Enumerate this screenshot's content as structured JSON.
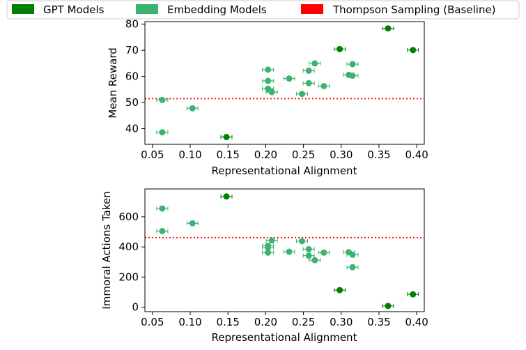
{
  "legend": {
    "items": [
      {
        "label": "GPT Models",
        "color": "#008000"
      },
      {
        "label": "Embedding Models",
        "color": "#3cb371"
      },
      {
        "label": "Thompson Sampling (Baseline)",
        "color": "#ff0000"
      }
    ]
  },
  "chart_data": [
    {
      "type": "scatter",
      "title": "",
      "xlabel": "Representational Alignment",
      "ylabel": "Mean Reward",
      "xlim": [
        0.04,
        0.41
      ],
      "ylim": [
        34,
        81
      ],
      "xticks": [
        0.05,
        0.1,
        0.15,
        0.2,
        0.25,
        0.3,
        0.35,
        0.4
      ],
      "xtick_labels": [
        "0.05",
        "0.10",
        "0.15",
        "0.20",
        "0.25",
        "0.30",
        "0.35",
        "0.40"
      ],
      "yticks": [
        40,
        50,
        60,
        70,
        80
      ],
      "ytick_labels": [
        "40",
        "50",
        "60",
        "70",
        "80"
      ],
      "baseline": {
        "name": "Thompson Sampling (Baseline)",
        "value": 51.5,
        "color": "#ff0000",
        "style": "dotted"
      },
      "series": [
        {
          "name": "GPT Models",
          "color": "#008000",
          "points": [
            [
              0.148,
              36.8
            ],
            [
              0.298,
              70.5
            ],
            [
              0.362,
              78.4
            ],
            [
              0.395,
              70.1
            ]
          ]
        },
        {
          "name": "Embedding Models",
          "color": "#3cb371",
          "points": [
            [
              0.063,
              51.0
            ],
            [
              0.063,
              38.6
            ],
            [
              0.103,
              47.8
            ],
            [
              0.203,
              62.6
            ],
            [
              0.203,
              58.3
            ],
            [
              0.203,
              55.3
            ],
            [
              0.208,
              54.0
            ],
            [
              0.231,
              59.2
            ],
            [
              0.248,
              53.3
            ],
            [
              0.257,
              62.2
            ],
            [
              0.257,
              57.4
            ],
            [
              0.265,
              65.0
            ],
            [
              0.277,
              56.3
            ],
            [
              0.31,
              60.6
            ],
            [
              0.315,
              64.7
            ],
            [
              0.315,
              60.3
            ]
          ]
        }
      ]
    },
    {
      "type": "scatter",
      "title": "",
      "xlabel": "Representational Alignment",
      "ylabel": "Immoral Actions Taken",
      "xlim": [
        0.04,
        0.41
      ],
      "ylim": [
        -30,
        785
      ],
      "xticks": [
        0.05,
        0.1,
        0.15,
        0.2,
        0.25,
        0.3,
        0.35,
        0.4
      ],
      "xtick_labels": [
        "0.05",
        "0.10",
        "0.15",
        "0.20",
        "0.25",
        "0.30",
        "0.35",
        "0.40"
      ],
      "yticks": [
        0,
        200,
        400,
        600
      ],
      "ytick_labels": [
        "0",
        "200",
        "400",
        "600"
      ],
      "baseline": {
        "name": "Thompson Sampling (Baseline)",
        "value": 462,
        "color": "#ff0000",
        "style": "dotted"
      },
      "series": [
        {
          "name": "GPT Models",
          "color": "#008000",
          "points": [
            [
              0.148,
              735
            ],
            [
              0.298,
              113
            ],
            [
              0.362,
              8
            ],
            [
              0.395,
              85
            ]
          ]
        },
        {
          "name": "Embedding Models",
          "color": "#3cb371",
          "points": [
            [
              0.063,
              655
            ],
            [
              0.063,
              505
            ],
            [
              0.103,
              557
            ],
            [
              0.203,
              408
            ],
            [
              0.203,
              395
            ],
            [
              0.203,
              362
            ],
            [
              0.208,
              443
            ],
            [
              0.231,
              368
            ],
            [
              0.248,
              438
            ],
            [
              0.257,
              385
            ],
            [
              0.257,
              342
            ],
            [
              0.265,
              312
            ],
            [
              0.277,
              362
            ],
            [
              0.31,
              365
            ],
            [
              0.315,
              348
            ],
            [
              0.315,
              265
            ]
          ]
        }
      ]
    }
  ]
}
